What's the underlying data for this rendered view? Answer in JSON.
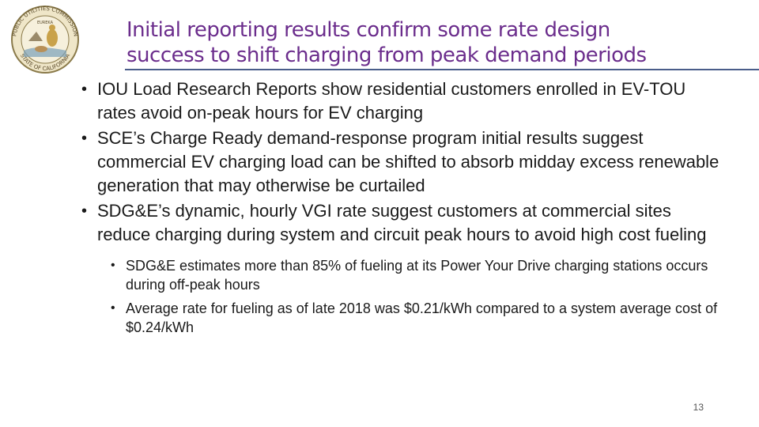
{
  "seal": {
    "icon": "state-seal-logo",
    "top_text": "PUBLIC UTILITIES COMMISSION",
    "bottom_text": "STATE OF CALIFORNIA",
    "motto": "EUREKA"
  },
  "title": {
    "line1": "Initial reporting results confirm some rate design",
    "line2": "success to shift charging from peak demand periods",
    "color": "#6b2d8c"
  },
  "bullets": [
    {
      "text": "IOU Load Research Reports show residential customers enrolled in EV-TOU rates avoid on-peak hours for EV charging"
    },
    {
      "text": "SCE’s Charge Ready demand-response program initial results suggest commercial EV charging load can be shifted to absorb midday excess renewable generation that may otherwise be curtailed"
    },
    {
      "text": "SDG&E’s dynamic, hourly VGI rate suggest customers at commercial sites reduce charging during system and circuit peak hours to avoid high cost fueling"
    }
  ],
  "sub_bullets": [
    {
      "text": "SDG&E estimates more than 85% of fueling at its Power Your Drive charging stations occurs during off-peak hours"
    },
    {
      "text": "Average rate for fueling as of late 2018 was $0.21/kWh compared to a system average cost of $0.24/kWh"
    }
  ],
  "page_number": "13"
}
